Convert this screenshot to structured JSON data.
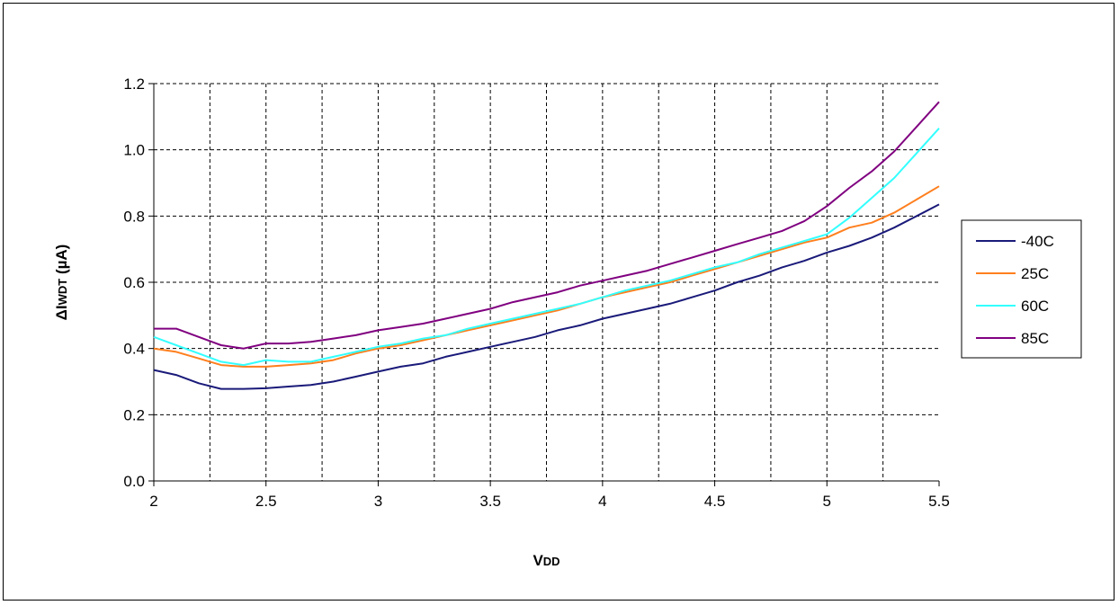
{
  "chart_data": {
    "type": "line",
    "title": "",
    "xlabel": {
      "main": "V",
      "sub": "DD"
    },
    "ylabel": {
      "prefix": "ΔI",
      "sub": "WDT",
      "suffix": " (µA)"
    },
    "xlim": [
      2,
      5.5
    ],
    "ylim": [
      0,
      1.2
    ],
    "x_ticks": [
      "2",
      "2.5",
      "3",
      "3.5",
      "4",
      "4.5",
      "5",
      "5.5"
    ],
    "y_ticks": [
      "0.0",
      "0.2",
      "0.4",
      "0.6",
      "0.8",
      "1.0",
      "1.2"
    ],
    "x_grid_step": 0.25,
    "y_grid_step": 0.2,
    "grid": true,
    "legend_position": "right",
    "x": [
      2.0,
      2.1,
      2.2,
      2.3,
      2.4,
      2.5,
      2.6,
      2.7,
      2.8,
      2.9,
      3.0,
      3.1,
      3.2,
      3.3,
      3.4,
      3.5,
      3.6,
      3.7,
      3.8,
      3.9,
      4.0,
      4.1,
      4.2,
      4.3,
      4.4,
      4.5,
      4.6,
      4.7,
      4.8,
      4.9,
      5.0,
      5.1,
      5.2,
      5.3,
      5.4,
      5.5
    ],
    "series": [
      {
        "name": "-40C",
        "color": "#1a1a7a",
        "values": [
          0.335,
          0.32,
          0.295,
          0.278,
          0.278,
          0.28,
          0.285,
          0.29,
          0.3,
          0.315,
          0.33,
          0.345,
          0.355,
          0.375,
          0.39,
          0.405,
          0.42,
          0.435,
          0.455,
          0.47,
          0.49,
          0.505,
          0.52,
          0.535,
          0.555,
          0.575,
          0.6,
          0.62,
          0.645,
          0.665,
          0.69,
          0.71,
          0.735,
          0.765,
          0.8,
          0.835
        ]
      },
      {
        "name": "25C",
        "color": "#ff7f1e",
        "values": [
          0.4,
          0.39,
          0.37,
          0.35,
          0.345,
          0.345,
          0.35,
          0.355,
          0.365,
          0.385,
          0.4,
          0.41,
          0.425,
          0.44,
          0.455,
          0.47,
          0.485,
          0.5,
          0.515,
          0.535,
          0.555,
          0.57,
          0.585,
          0.6,
          0.62,
          0.64,
          0.66,
          0.68,
          0.7,
          0.72,
          0.735,
          0.765,
          0.78,
          0.81,
          0.85,
          0.89
        ]
      },
      {
        "name": "60C",
        "color": "#33ffff",
        "values": [
          0.435,
          0.41,
          0.385,
          0.36,
          0.35,
          0.365,
          0.36,
          0.36,
          0.375,
          0.39,
          0.405,
          0.415,
          0.43,
          0.44,
          0.46,
          0.475,
          0.49,
          0.505,
          0.52,
          0.535,
          0.555,
          0.575,
          0.59,
          0.605,
          0.625,
          0.645,
          0.66,
          0.685,
          0.705,
          0.725,
          0.745,
          0.795,
          0.855,
          0.915,
          0.99,
          1.065
        ]
      },
      {
        "name": "85C",
        "color": "#800080",
        "values": [
          0.46,
          0.46,
          0.435,
          0.41,
          0.4,
          0.415,
          0.415,
          0.42,
          0.43,
          0.44,
          0.455,
          0.465,
          0.475,
          0.49,
          0.505,
          0.52,
          0.54,
          0.555,
          0.57,
          0.59,
          0.605,
          0.62,
          0.635,
          0.655,
          0.675,
          0.695,
          0.715,
          0.735,
          0.755,
          0.785,
          0.83,
          0.885,
          0.935,
          0.995,
          1.07,
          1.145
        ]
      }
    ]
  }
}
